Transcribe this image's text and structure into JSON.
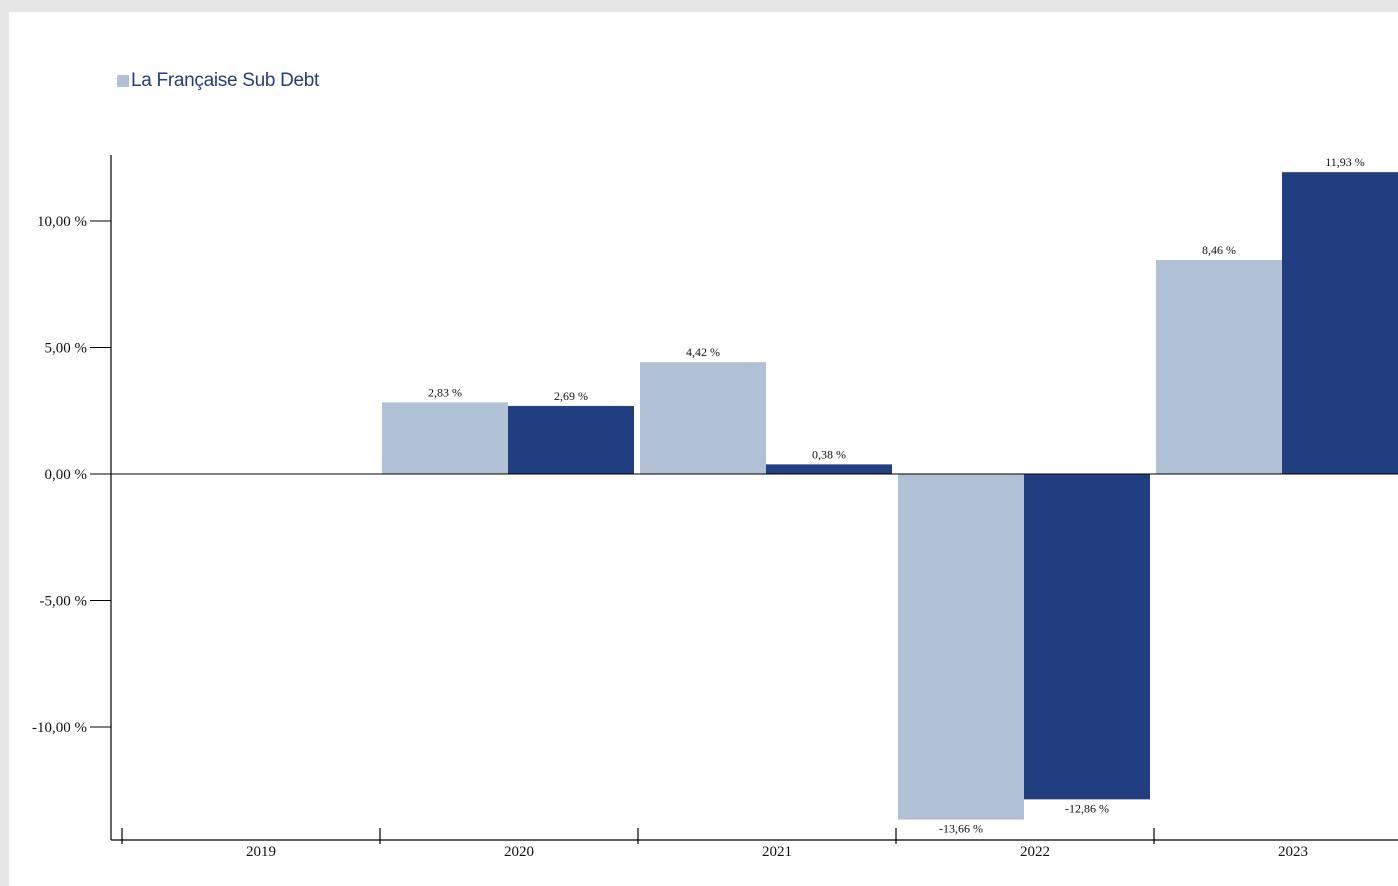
{
  "legend": {
    "label": "La Française Sub Debt",
    "swatch_color": "#b1c1d6"
  },
  "colors": {
    "series_light": "#b1c1d6",
    "series_dark": "#213e80",
    "axis": "#000000"
  },
  "chart_data": {
    "type": "bar",
    "categories": [
      "2019",
      "2020",
      "2021",
      "2022",
      "2023"
    ],
    "series": [
      {
        "name": "La Française Sub Debt",
        "color": "#b1c1d6",
        "values": [
          null,
          2.83,
          4.42,
          -13.66,
          8.46
        ],
        "labels": [
          "",
          "2,83 %",
          "4,42 %",
          "-13,66 %",
          "8,46 %"
        ]
      },
      {
        "color": "#213e80",
        "values": [
          null,
          2.69,
          0.38,
          -12.86,
          11.93
        ],
        "labels": [
          "",
          "2,69 %",
          "0,38 %",
          "-12,86 %",
          "11,93 %"
        ]
      }
    ],
    "y_ticks": [
      10,
      5,
      0,
      -5,
      -10
    ],
    "y_tick_labels": [
      "10,00 %",
      "5,00 %",
      "0,00 %",
      "-5,00 %",
      "-10,00 %"
    ],
    "ylim": [
      -14.5,
      12.7
    ],
    "grid": false
  }
}
